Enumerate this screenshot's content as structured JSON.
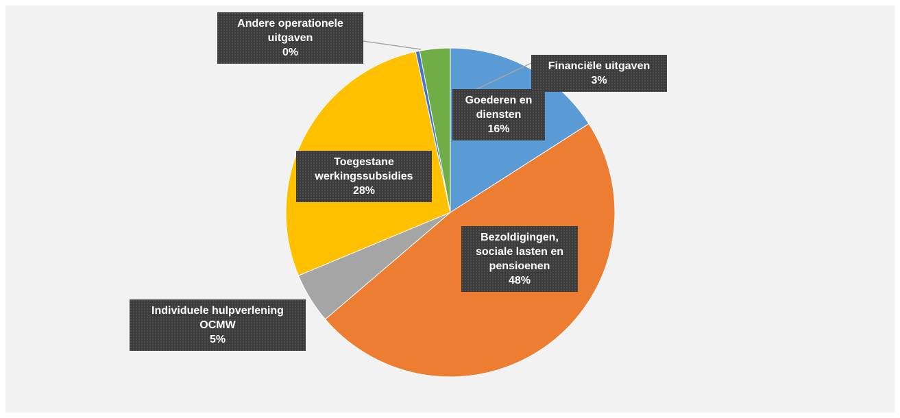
{
  "chart_data": {
    "type": "pie",
    "categories": [
      "Goederen en diensten",
      "Bezoldigingen, sociale lasten en pensioenen",
      "Individuele hulpverlening OCMW",
      "Toegestane werkingssubsidies",
      "Andere operationele uitgaven",
      "Financiële uitgaven"
    ],
    "values": [
      16,
      48,
      5,
      28,
      0.4,
      3
    ],
    "value_labels": [
      "16%",
      "48%",
      "5%",
      "28%",
      "0%",
      "3%"
    ],
    "colors": [
      "#5b9bd5",
      "#ed7d31",
      "#a5a5a5",
      "#ffc000",
      "#4472c4",
      "#70ad47"
    ]
  }
}
